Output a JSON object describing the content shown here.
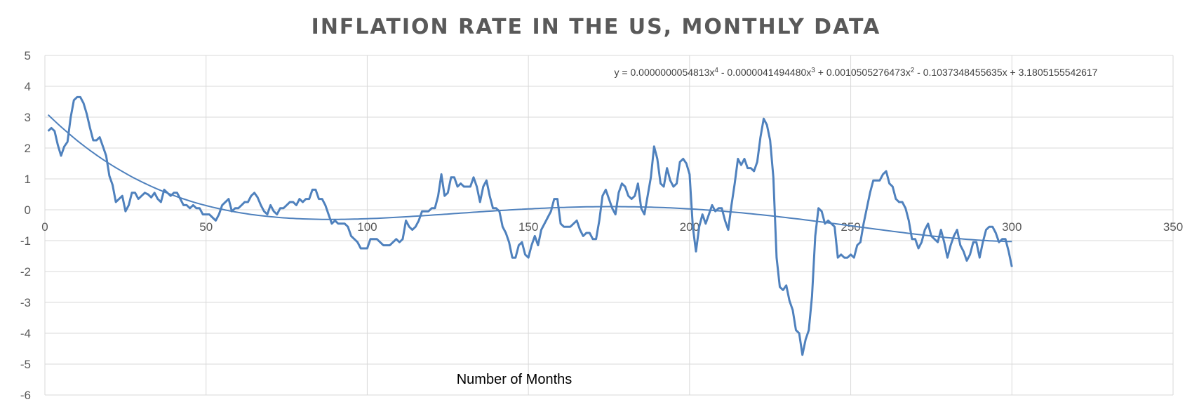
{
  "chart_data": {
    "type": "line",
    "title": "INFLATION RATE IN THE US, MONTHLY DATA",
    "xlabel": "Number of Months",
    "ylabel": "",
    "xlim": [
      0,
      350
    ],
    "ylim": [
      -6,
      5
    ],
    "x_ticks": [
      0,
      50,
      100,
      150,
      200,
      250,
      300,
      350
    ],
    "y_ticks": [
      5,
      4,
      3,
      2,
      1,
      0,
      -1,
      -2,
      -3,
      -4,
      -5,
      -6
    ],
    "grid": true,
    "trendline": {
      "kind": "polynomial order 4",
      "equation_parts": [
        "y = 0.0000000054813x",
        "4",
        " - 0.0000041494480x",
        "3",
        " + 0.0010505276473x",
        "2",
        " - 0.1037348455635x + 3.1805155542617"
      ],
      "coefficients": [
        5.4813e-09,
        -4.149448e-06,
        0.0010505276473,
        -0.1037348455635,
        3.1805155542617
      ]
    },
    "series": [
      {
        "color": "#4f81bd",
        "x": [
          1,
          2,
          3,
          4,
          5,
          6,
          7,
          8,
          9,
          10,
          11,
          12,
          13,
          14,
          15,
          16,
          17,
          18,
          19,
          20,
          21,
          22,
          23,
          24,
          25,
          26,
          27,
          28,
          29,
          30,
          31,
          32,
          33,
          34,
          35,
          36,
          37,
          38,
          39,
          40,
          41,
          42,
          43,
          44,
          45,
          46,
          47,
          48,
          49,
          50,
          51,
          52,
          53,
          54,
          55,
          56,
          57,
          58,
          59,
          60,
          61,
          62,
          63,
          64,
          65,
          66,
          67,
          68,
          69,
          70,
          71,
          72,
          73,
          74,
          75,
          76,
          77,
          78,
          79,
          80,
          81,
          82,
          83,
          84,
          85,
          86,
          87,
          88,
          89,
          90,
          91,
          92,
          93,
          94,
          95,
          96,
          97,
          98,
          99,
          100,
          101,
          102,
          103,
          104,
          105,
          106,
          107,
          108,
          109,
          110,
          111,
          112,
          113,
          114,
          115,
          116,
          117,
          118,
          119,
          120,
          121,
          122,
          123,
          124,
          125,
          126,
          127,
          128,
          129,
          130,
          131,
          132,
          133,
          134,
          135,
          136,
          137,
          138,
          139,
          140,
          141,
          142,
          143,
          144,
          145,
          146,
          147,
          148,
          149,
          150,
          151,
          152,
          153,
          154,
          155,
          156,
          157,
          158,
          159,
          160,
          161,
          162,
          163,
          164,
          165,
          166,
          167,
          168,
          169,
          170,
          171,
          172,
          173,
          174,
          175,
          176,
          177,
          178,
          179,
          180,
          181,
          182,
          183,
          184,
          185,
          186,
          187,
          188,
          189,
          190,
          191,
          192,
          193,
          194,
          195,
          196,
          197,
          198,
          199,
          200,
          201,
          202,
          203,
          204,
          205,
          206,
          207,
          208,
          209,
          210,
          211,
          212,
          213,
          214,
          215,
          216,
          217,
          218,
          219,
          220,
          221,
          222,
          223,
          224,
          225,
          226,
          227,
          228,
          229,
          230,
          231,
          232,
          233,
          234,
          235,
          236,
          237,
          238,
          239,
          240,
          241,
          242,
          243,
          244,
          245,
          246,
          247,
          248,
          249,
          250,
          251,
          252,
          253,
          254,
          255,
          256,
          257,
          258,
          259,
          260,
          261,
          262,
          263,
          264,
          265,
          266,
          267,
          268,
          269,
          270,
          271,
          272,
          273,
          274,
          275,
          276,
          277,
          278,
          279,
          280,
          281,
          282,
          283,
          284,
          285,
          286,
          287,
          288,
          289,
          290,
          291,
          292,
          293,
          294,
          295,
          296,
          297,
          298,
          299,
          300
        ],
        "y": [
          2.55,
          2.65,
          2.55,
          2.1,
          1.75,
          2.05,
          2.2,
          3.0,
          3.55,
          3.65,
          3.65,
          3.45,
          3.1,
          2.65,
          2.25,
          2.25,
          2.35,
          2.05,
          1.75,
          1.1,
          0.8,
          0.25,
          0.35,
          0.45,
          -0.05,
          0.15,
          0.55,
          0.55,
          0.35,
          0.45,
          0.55,
          0.5,
          0.4,
          0.55,
          0.35,
          0.25,
          0.65,
          0.55,
          0.45,
          0.55,
          0.55,
          0.35,
          0.15,
          0.15,
          0.05,
          0.15,
          0.05,
          0.05,
          -0.15,
          -0.15,
          -0.15,
          -0.25,
          -0.35,
          -0.15,
          0.15,
          0.25,
          0.35,
          -0.05,
          0.05,
          0.05,
          0.15,
          0.25,
          0.25,
          0.45,
          0.55,
          0.4,
          0.15,
          -0.05,
          -0.15,
          0.15,
          -0.05,
          -0.15,
          0.05,
          0.05,
          0.15,
          0.25,
          0.25,
          0.15,
          0.35,
          0.25,
          0.35,
          0.35,
          0.65,
          0.65,
          0.35,
          0.35,
          0.15,
          -0.15,
          -0.45,
          -0.35,
          -0.45,
          -0.45,
          -0.45,
          -0.55,
          -0.85,
          -0.95,
          -1.05,
          -1.25,
          -1.25,
          -1.25,
          -0.95,
          -0.95,
          -0.95,
          -1.05,
          -1.15,
          -1.15,
          -1.15,
          -1.05,
          -0.95,
          -1.05,
          -0.95,
          -0.35,
          -0.55,
          -0.65,
          -0.55,
          -0.35,
          -0.05,
          -0.05,
          -0.05,
          0.05,
          0.05,
          0.45,
          1.15,
          0.45,
          0.55,
          1.05,
          1.05,
          0.75,
          0.85,
          0.75,
          0.75,
          0.75,
          1.05,
          0.75,
          0.25,
          0.75,
          0.95,
          0.45,
          0.05,
          0.05,
          -0.05,
          -0.55,
          -0.75,
          -1.05,
          -1.55,
          -1.55,
          -1.15,
          -1.05,
          -1.45,
          -1.55,
          -1.15,
          -0.85,
          -1.15,
          -0.65,
          -0.45,
          -0.25,
          -0.05,
          0.35,
          0.35,
          -0.45,
          -0.55,
          -0.55,
          -0.55,
          -0.45,
          -0.35,
          -0.65,
          -0.85,
          -0.75,
          -0.75,
          -0.95,
          -0.95,
          -0.35,
          0.45,
          0.65,
          0.35,
          0.05,
          -0.15,
          0.55,
          0.85,
          0.75,
          0.45,
          0.35,
          0.45,
          0.85,
          0.05,
          -0.15,
          0.45,
          1.05,
          2.05,
          1.65,
          0.85,
          0.75,
          1.35,
          0.95,
          0.75,
          0.85,
          1.55,
          1.65,
          1.5,
          1.15,
          -0.55,
          -1.35,
          -0.55,
          -0.15,
          -0.45,
          -0.15,
          0.15,
          -0.05,
          0.05,
          0.05,
          -0.35,
          -0.65,
          0.15,
          0.85,
          1.65,
          1.45,
          1.65,
          1.35,
          1.35,
          1.25,
          1.55,
          2.35,
          2.95,
          2.75,
          2.25,
          1.05,
          -1.55,
          -2.5,
          -2.6,
          -2.45,
          -2.95,
          -3.25,
          -3.9,
          -4.0,
          -4.7,
          -4.2,
          -3.9,
          -2.8,
          -0.85,
          0.05,
          -0.05,
          -0.45,
          -0.35,
          -0.45,
          -0.55,
          -1.55,
          -1.45,
          -1.55,
          -1.55,
          -1.45,
          -1.55,
          -1.15,
          -1.05,
          -0.45,
          0.05,
          0.55,
          0.95,
          0.95,
          0.95,
          1.15,
          1.25,
          0.85,
          0.75,
          0.35,
          0.25,
          0.25,
          0.05,
          -0.35,
          -0.95,
          -0.95,
          -1.25,
          -1.05,
          -0.65,
          -0.45,
          -0.85,
          -0.95,
          -1.05,
          -0.65,
          -1.05,
          -1.55,
          -1.15,
          -0.85,
          -0.65,
          -1.15,
          -1.35,
          -1.65,
          -1.45,
          -1.05,
          -1.05,
          -1.55,
          -1.05,
          -0.65,
          -0.55,
          -0.55,
          -0.75,
          -1.05,
          -0.95,
          -0.95,
          -1.35,
          -1.85
        ]
      }
    ]
  }
}
